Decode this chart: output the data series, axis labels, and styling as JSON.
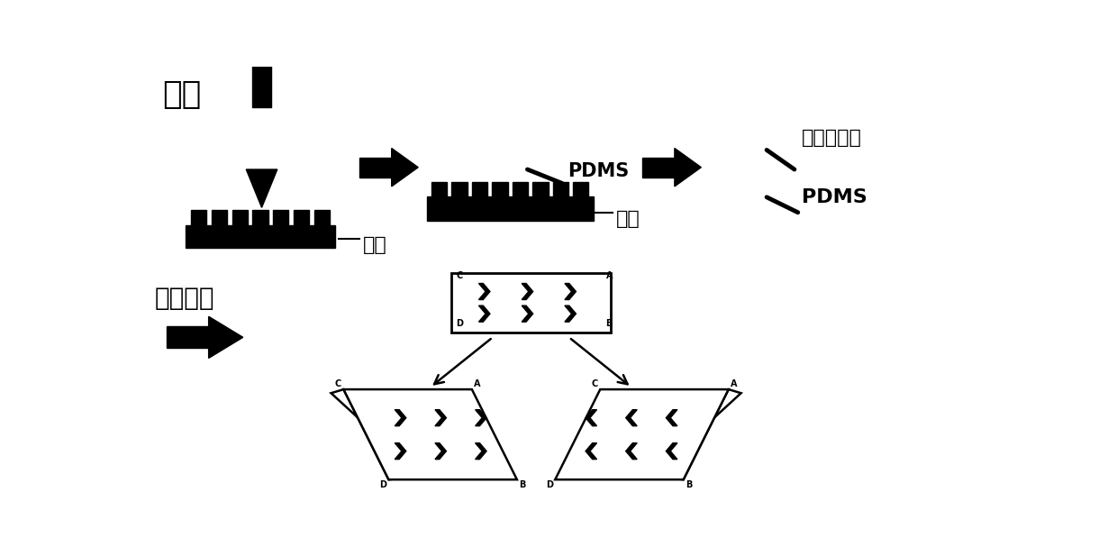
{
  "bg_color": "#ffffff",
  "label_guangke": "光刻",
  "label_guipian1": "硅片",
  "label_guipian2": "硅片",
  "label_pdms1": "PDMS",
  "label_pdms2": "PDMS",
  "label_dimethyl": "二甲基硅油",
  "label_electric": "电场控制",
  "figsize": [
    12.4,
    6.17
  ],
  "dpi": 100
}
